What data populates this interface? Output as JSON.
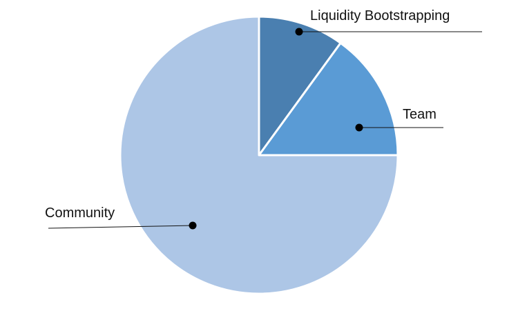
{
  "chart_data": {
    "type": "pie",
    "start_angle_deg": 0,
    "direction": "clockwise",
    "slices": [
      {
        "label": "Liquidity Bootstrapping",
        "value": 10,
        "color": "#4a7fb0"
      },
      {
        "label": "Team",
        "value": 15,
        "color": "#5a9bd5"
      },
      {
        "label": "Community",
        "value": 75,
        "color": "#adc6e6"
      }
    ],
    "legend": "none",
    "title": ""
  }
}
